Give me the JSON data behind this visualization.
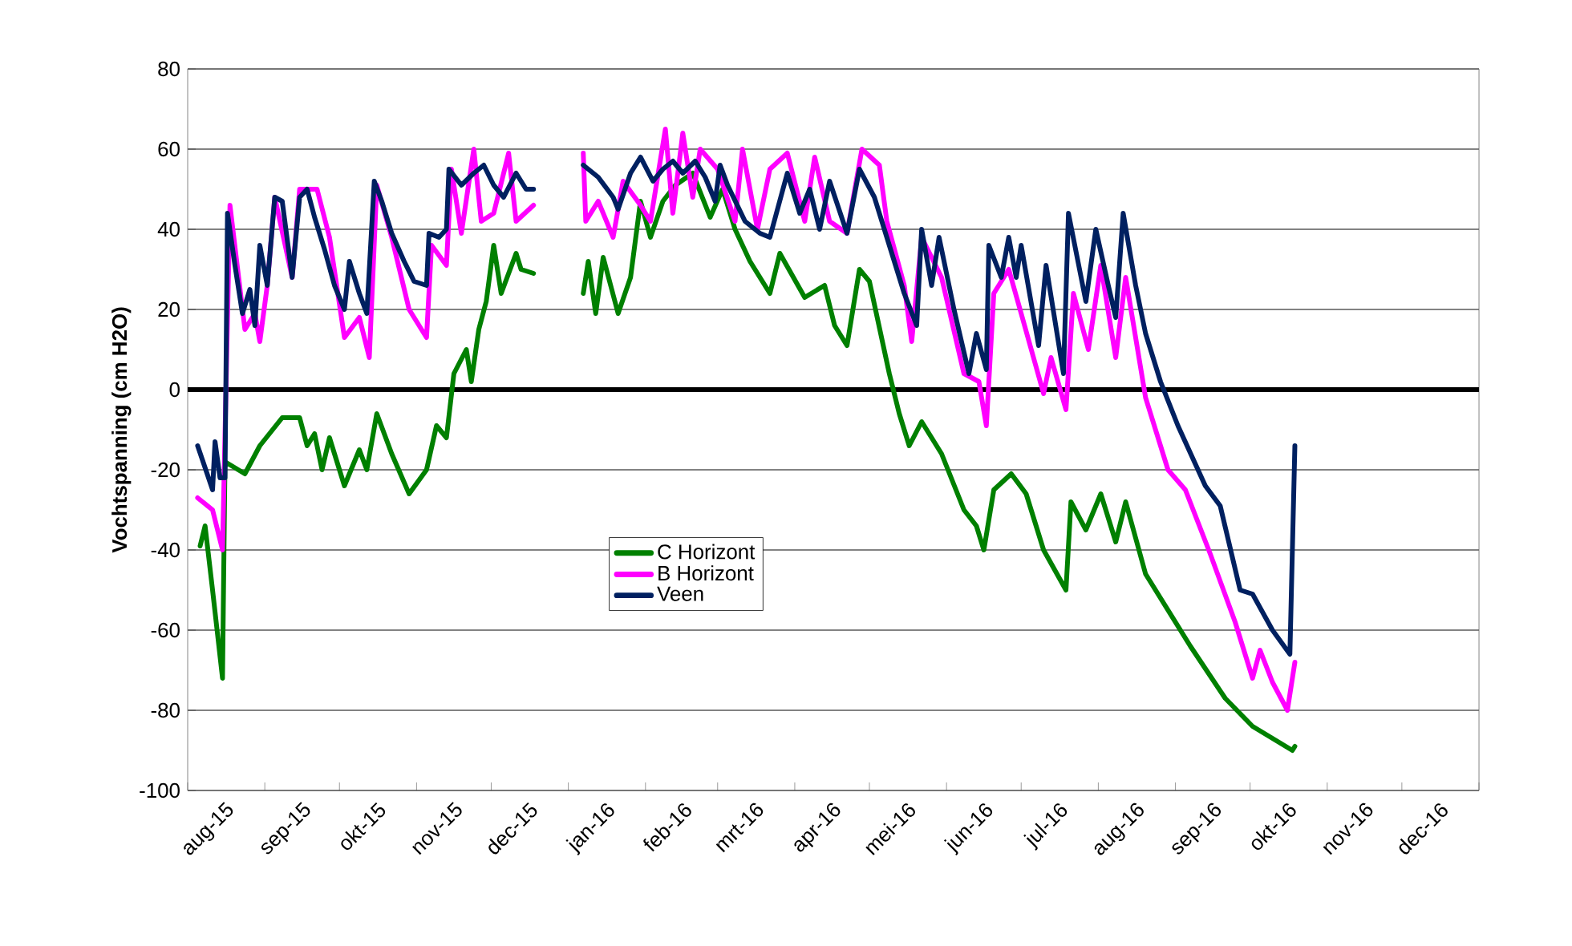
{
  "chart_data": {
    "type": "line",
    "ylabel": "Vochtspanning (cm H2O)",
    "xlim": [
      "2015-08-01",
      "2017-01-01"
    ],
    "xticks": [
      {
        "value": "2015-08-01",
        "label": null
      },
      {
        "value": "2015-08-16",
        "label": "aug-15"
      },
      {
        "value": "2015-09-01",
        "label": null
      },
      {
        "value": "2015-09-16",
        "label": "sep-15"
      },
      {
        "value": "2015-10-01",
        "label": null
      },
      {
        "value": "2015-10-16",
        "label": "okt-15"
      },
      {
        "value": "2015-11-01",
        "label": null
      },
      {
        "value": "2015-11-16",
        "label": "nov-15"
      },
      {
        "value": "2015-12-01",
        "label": null
      },
      {
        "value": "2015-12-16",
        "label": "dec-15"
      },
      {
        "value": "2016-01-01",
        "label": null
      },
      {
        "value": "2016-01-16",
        "label": "jan-16"
      },
      {
        "value": "2016-02-01",
        "label": null
      },
      {
        "value": "2016-02-16",
        "label": "feb-16"
      },
      {
        "value": "2016-03-01",
        "label": null
      },
      {
        "value": "2016-03-16",
        "label": "mrt-16"
      },
      {
        "value": "2016-04-01",
        "label": null
      },
      {
        "value": "2016-04-16",
        "label": "apr-16"
      },
      {
        "value": "2016-05-01",
        "label": null
      },
      {
        "value": "2016-05-16",
        "label": "mei-16"
      },
      {
        "value": "2016-06-01",
        "label": null
      },
      {
        "value": "2016-06-16",
        "label": "jun-16"
      },
      {
        "value": "2016-07-01",
        "label": null
      },
      {
        "value": "2016-07-16",
        "label": "jul-16"
      },
      {
        "value": "2016-08-01",
        "label": null
      },
      {
        "value": "2016-08-16",
        "label": "aug-16"
      },
      {
        "value": "2016-09-01",
        "label": null
      },
      {
        "value": "2016-09-16",
        "label": "sep-16"
      },
      {
        "value": "2016-10-01",
        "label": null
      },
      {
        "value": "2016-10-16",
        "label": "okt-16"
      },
      {
        "value": "2016-11-01",
        "label": null
      },
      {
        "value": "2016-11-16",
        "label": "nov-16"
      },
      {
        "value": "2016-12-01",
        "label": null
      },
      {
        "value": "2016-12-16",
        "label": "dec-16"
      },
      {
        "value": "2017-01-01",
        "label": null
      }
    ],
    "ylim": [
      -100,
      80
    ],
    "yticks": [
      -100,
      -80,
      -60,
      -40,
      -20,
      0,
      20,
      40,
      60,
      80
    ],
    "grid": "y",
    "legend": "center",
    "ref_lines": [
      {
        "axis": "y",
        "value": 0,
        "color": "#000000"
      }
    ],
    "series": [
      {
        "name": "C Horizont",
        "color": "#008000",
        "x": [
          "2015-08-06",
          "2015-08-08",
          "2015-08-11",
          "2015-08-15",
          "2015-08-16",
          "2015-08-24",
          "2015-08-30",
          "2015-09-08",
          "2015-09-15",
          "2015-09-18",
          "2015-09-21",
          "2015-09-24",
          "2015-09-27",
          "2015-10-03",
          "2015-10-09",
          "2015-10-12",
          "2015-10-16",
          "2015-10-22",
          "2015-10-29",
          "2015-11-05",
          "2015-11-09",
          "2015-11-13",
          "2015-11-16",
          "2015-11-21",
          "2015-11-23",
          "2015-11-26",
          "2015-11-29",
          "2015-12-02",
          "2015-12-05",
          "2015-12-11",
          "2015-12-13",
          "2015-12-18",
          "2015-12-28",
          "2016-01-07",
          "2016-01-09",
          "2016-01-12",
          "2016-01-15",
          "2016-01-21",
          "2016-01-26",
          "2016-01-30",
          "2016-02-03",
          "2016-02-08",
          "2016-02-13",
          "2016-02-20",
          "2016-02-27",
          "2016-03-03",
          "2016-03-08",
          "2016-03-14",
          "2016-03-22",
          "2016-03-26",
          "2016-04-05",
          "2016-04-13",
          "2016-04-17",
          "2016-04-22",
          "2016-04-27",
          "2016-05-01",
          "2016-05-09",
          "2016-05-13",
          "2016-05-17",
          "2016-05-22",
          "2016-05-30",
          "2016-06-08",
          "2016-06-13",
          "2016-06-16",
          "2016-06-20",
          "2016-06-27",
          "2016-07-03",
          "2016-07-10",
          "2016-07-19",
          "2016-07-21",
          "2016-07-27",
          "2016-08-02",
          "2016-08-08",
          "2016-08-12",
          "2016-08-20",
          "2016-08-26",
          "2016-09-07",
          "2016-09-21",
          "2016-10-02",
          "2016-10-18",
          "2016-10-19"
        ],
        "values": [
          -39,
          -34,
          -50,
          -72,
          -18,
          -21,
          -14,
          -7,
          -7,
          -14,
          -11,
          -20,
          -12,
          -24,
          -15,
          -20,
          -6,
          -16,
          -26,
          -20,
          -9,
          -12,
          4,
          10,
          2,
          15,
          22,
          36,
          24,
          34,
          30,
          29,
          null,
          24,
          32,
          19,
          33,
          19,
          28,
          47,
          38,
          47,
          51,
          54,
          43,
          50,
          40,
          32,
          24,
          34,
          23,
          26,
          16,
          11,
          30,
          27,
          4,
          -6,
          -14,
          -8,
          -16,
          -30,
          -34,
          -40,
          -25,
          -21,
          -26,
          -40,
          -50,
          -28,
          -35,
          -26,
          -38,
          -28,
          -46,
          -52,
          -64,
          -77,
          -84,
          -90,
          -89
        ]
      },
      {
        "name": "B Horizont",
        "color": "#ff00ff",
        "x": [
          "2015-08-05",
          "2015-08-11",
          "2015-08-15",
          "2015-08-18",
          "2015-08-24",
          "2015-08-28",
          "2015-08-30",
          "2015-09-02",
          "2015-09-05",
          "2015-09-12",
          "2015-09-15",
          "2015-09-22",
          "2015-09-27",
          "2015-10-03",
          "2015-10-09",
          "2015-10-13",
          "2015-10-16",
          "2015-10-22",
          "2015-10-29",
          "2015-11-05",
          "2015-11-07",
          "2015-11-13",
          "2015-11-15",
          "2015-11-19",
          "2015-11-24",
          "2015-11-27",
          "2015-12-02",
          "2015-12-08",
          "2015-12-11",
          "2015-12-18",
          "2015-12-28",
          "2016-01-07",
          "2016-01-08",
          "2016-01-13",
          "2016-01-19",
          "2016-01-23",
          "2016-01-30",
          "2016-02-03",
          "2016-02-09",
          "2016-02-12",
          "2016-02-16",
          "2016-02-20",
          "2016-02-23",
          "2016-03-01",
          "2016-03-08",
          "2016-03-11",
          "2016-03-17",
          "2016-03-22",
          "2016-03-29",
          "2016-04-05",
          "2016-04-09",
          "2016-04-15",
          "2016-04-22",
          "2016-04-28",
          "2016-05-05",
          "2016-05-08",
          "2016-05-15",
          "2016-05-18",
          "2016-05-22",
          "2016-05-30",
          "2016-06-08",
          "2016-06-14",
          "2016-06-17",
          "2016-06-20",
          "2016-06-26",
          "2016-07-01",
          "2016-07-10",
          "2016-07-13",
          "2016-07-19",
          "2016-07-22",
          "2016-07-28",
          "2016-08-02",
          "2016-08-08",
          "2016-08-12",
          "2016-08-20",
          "2016-08-29",
          "2016-09-05",
          "2016-09-15",
          "2016-09-25",
          "2016-10-02",
          "2016-10-05",
          "2016-10-10",
          "2016-10-16",
          "2016-10-19"
        ],
        "values": [
          -27,
          -30,
          -40,
          46,
          15,
          19,
          12,
          26,
          48,
          28,
          50,
          50,
          38,
          13,
          18,
          8,
          51,
          38,
          20,
          13,
          36,
          31,
          55,
          39,
          60,
          42,
          44,
          59,
          42,
          46,
          null,
          59,
          42,
          47,
          38,
          52,
          46,
          42,
          65,
          44,
          64,
          48,
          60,
          55,
          42,
          60,
          40,
          55,
          59,
          42,
          58,
          42,
          39,
          60,
          56,
          42,
          26,
          12,
          38,
          28,
          4,
          2,
          -9,
          24,
          30,
          19,
          -1,
          8,
          -5,
          24,
          10,
          31,
          8,
          28,
          -2,
          -20,
          -25,
          -41,
          -58,
          -72,
          -65,
          -73,
          -80,
          -68
        ]
      },
      {
        "name": "Veen",
        "color": "#002060",
        "x": [
          "2015-08-05",
          "2015-08-11",
          "2015-08-12",
          "2015-08-14",
          "2015-08-16",
          "2015-08-17",
          "2015-08-20",
          "2015-08-23",
          "2015-08-26",
          "2015-08-28",
          "2015-08-30",
          "2015-09-02",
          "2015-09-05",
          "2015-09-08",
          "2015-09-12",
          "2015-09-15",
          "2015-09-18",
          "2015-09-21",
          "2015-09-25",
          "2015-09-29",
          "2015-10-03",
          "2015-10-05",
          "2015-10-09",
          "2015-10-12",
          "2015-10-15",
          "2015-10-18",
          "2015-10-22",
          "2015-10-27",
          "2015-10-31",
          "2015-11-05",
          "2015-11-06",
          "2015-11-10",
          "2015-11-13",
          "2015-11-14",
          "2015-11-19",
          "2015-11-24",
          "2015-11-28",
          "2015-12-02",
          "2015-12-06",
          "2015-12-11",
          "2015-12-15",
          "2015-12-18",
          "2015-12-28",
          "2016-01-07",
          "2016-01-13",
          "2016-01-19",
          "2016-01-21",
          "2016-01-26",
          "2016-01-30",
          "2016-02-04",
          "2016-02-08",
          "2016-02-12",
          "2016-02-16",
          "2016-02-21",
          "2016-02-25",
          "2016-02-29",
          "2016-03-02",
          "2016-03-05",
          "2016-03-12",
          "2016-03-18",
          "2016-03-22",
          "2016-03-29",
          "2016-04-03",
          "2016-04-07",
          "2016-04-11",
          "2016-04-15",
          "2016-04-22",
          "2016-04-27",
          "2016-05-03",
          "2016-05-09",
          "2016-05-15",
          "2016-05-20",
          "2016-05-22",
          "2016-05-26",
          "2016-05-29",
          "2016-06-04",
          "2016-06-10",
          "2016-06-13",
          "2016-06-17",
          "2016-06-18",
          "2016-06-23",
          "2016-06-26",
          "2016-06-29",
          "2016-07-01",
          "2016-07-08",
          "2016-07-11",
          "2016-07-18",
          "2016-07-20",
          "2016-07-27",
          "2016-07-31",
          "2016-08-05",
          "2016-08-08",
          "2016-08-11",
          "2016-08-16",
          "2016-08-20",
          "2016-08-26",
          "2016-09-02",
          "2016-09-13",
          "2016-09-19",
          "2016-09-27",
          "2016-10-02",
          "2016-10-10",
          "2016-10-17",
          "2016-10-19"
        ],
        "values": [
          -14,
          -25,
          -13,
          -22,
          -22,
          44,
          31,
          19,
          25,
          16,
          36,
          26,
          48,
          47,
          28,
          48,
          50,
          43,
          35,
          26,
          20,
          32,
          24,
          19,
          52,
          47,
          39,
          32,
          27,
          26,
          39,
          38,
          40,
          55,
          51,
          54,
          56,
          51,
          48,
          54,
          50,
          50,
          null,
          56,
          53,
          48,
          45,
          54,
          58,
          52,
          55,
          57,
          54,
          57,
          53,
          47,
          56,
          51,
          42,
          39,
          38,
          54,
          44,
          50,
          40,
          52,
          39,
          55,
          48,
          36,
          24,
          16,
          40,
          26,
          38,
          20,
          4,
          14,
          5,
          36,
          28,
          38,
          28,
          36,
          11,
          31,
          4,
          44,
          22,
          40,
          26,
          18,
          44,
          26,
          14,
          2,
          -9,
          -24,
          -29,
          -50,
          -51,
          -60,
          -66,
          -14
        ]
      }
    ]
  }
}
